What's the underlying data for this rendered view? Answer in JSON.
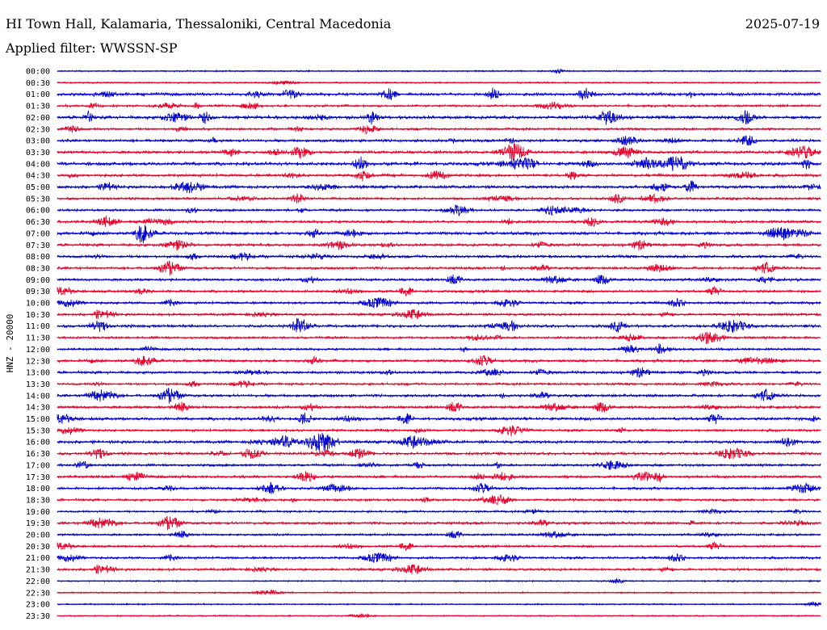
{
  "header": {
    "station": "HI Town Hall, Kalamaria, Thessaloniki, Central Macedonia",
    "date": "2025-07-19",
    "filter": "Applied filter: WWSSN-SP"
  },
  "chart_data": {
    "type": "line",
    "title": "HI Town Hall, Kalamaria, Thessaloniki, Central Macedonia",
    "channel_label": "HNZ - 20000",
    "row_labels": [
      "00:00",
      "00:30",
      "01:00",
      "01:30",
      "02:00",
      "02:30",
      "03:00",
      "03:30",
      "04:00",
      "04:30",
      "05:00",
      "05:30",
      "06:00",
      "06:30",
      "07:00",
      "07:30",
      "08:00",
      "08:30",
      "09:00",
      "09:30",
      "10:00",
      "10:30",
      "11:00",
      "11:30",
      "12:00",
      "12:30",
      "13:00",
      "13:30",
      "14:00",
      "14:30",
      "15:00",
      "15:30",
      "16:00",
      "16:30",
      "17:00",
      "17:30",
      "18:00",
      "18:30",
      "19:00",
      "19:30",
      "20:00",
      "20:30",
      "21:00",
      "21:30",
      "22:00",
      "22:30",
      "23:00",
      "23:30"
    ],
    "colors": [
      "#0000cc",
      "#e8002a"
    ],
    "row_activity": [
      0.1,
      0.12,
      0.7,
      0.45,
      0.75,
      0.45,
      0.6,
      0.65,
      0.85,
      0.6,
      0.7,
      0.5,
      0.45,
      0.6,
      0.75,
      0.55,
      0.6,
      0.55,
      0.55,
      0.5,
      0.5,
      0.5,
      0.65,
      0.45,
      0.45,
      0.6,
      0.55,
      0.45,
      0.6,
      0.6,
      0.65,
      0.45,
      0.65,
      0.6,
      0.5,
      0.55,
      0.5,
      0.45,
      0.35,
      0.55,
      0.4,
      0.4,
      0.45,
      0.5,
      0.1,
      0.12,
      0.12,
      0.08
    ],
    "grid": false
  }
}
